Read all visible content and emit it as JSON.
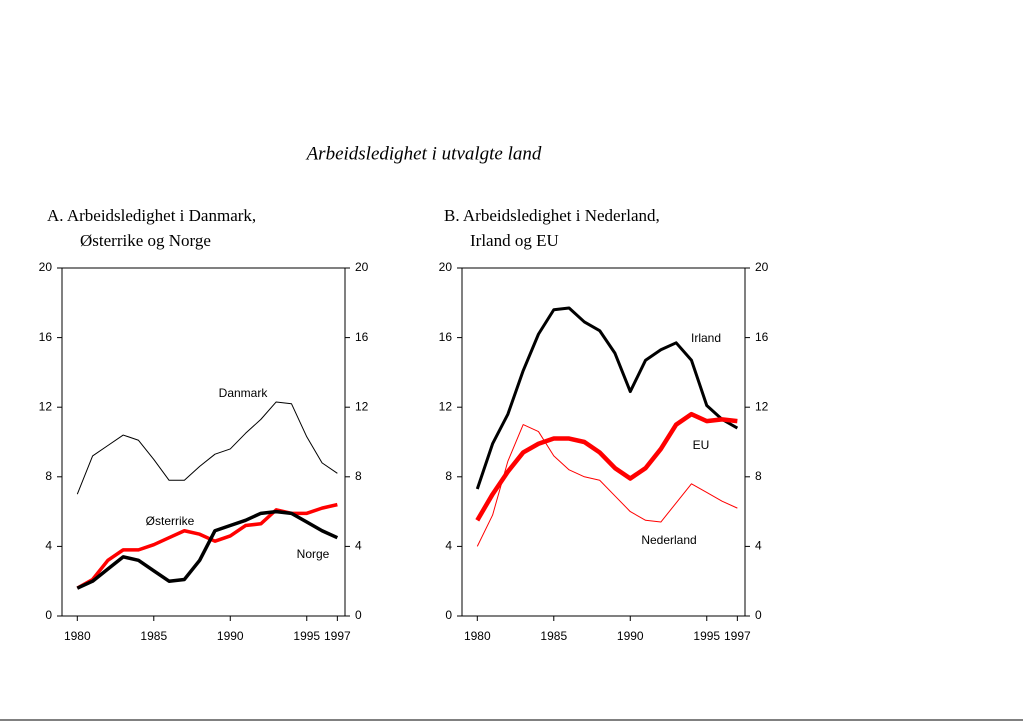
{
  "title": "Arbeidsledighet i utvalgte land",
  "chart_data": [
    {
      "type": "line",
      "title": [
        "A.  Arbeidsledighet i Danmark,",
        "Østerrike og Norge"
      ],
      "x": [
        1980,
        1981,
        1982,
        1983,
        1984,
        1985,
        1986,
        1987,
        1988,
        1989,
        1990,
        1991,
        1992,
        1993,
        1994,
        1995,
        1996,
        1997
      ],
      "xlim": [
        1979,
        1997.5
      ],
      "xticks": [
        1980,
        1985,
        1990,
        1995,
        1997
      ],
      "ylim": [
        0,
        20
      ],
      "yticks": [
        0,
        4,
        8,
        12,
        16,
        20
      ],
      "y2lim": [
        0,
        20
      ],
      "y2ticks": [
        0,
        4,
        8,
        12,
        16,
        20
      ],
      "series": [
        {
          "name": "Danmark",
          "color": "#000000",
          "values": [
            7.0,
            9.2,
            9.8,
            10.4,
            10.1,
            9.0,
            7.8,
            7.8,
            8.6,
            9.3,
            9.6,
            10.5,
            11.3,
            12.3,
            12.2,
            10.3,
            8.8,
            8.2
          ]
        },
        {
          "name": "Østerrike",
          "color": "#ff0000",
          "values": [
            1.6,
            2.1,
            3.2,
            3.8,
            3.8,
            4.1,
            4.5,
            4.9,
            4.7,
            4.3,
            4.6,
            5.2,
            5.3,
            6.1,
            5.9,
            5.9,
            6.2,
            6.4
          ]
        },
        {
          "name": "Norge",
          "color": "#000000",
          "values": [
            1.6,
            2.0,
            2.7,
            3.4,
            3.2,
            2.6,
            2.0,
            2.1,
            3.2,
            4.9,
            5.2,
            5.5,
            5.9,
            6.0,
            5.9,
            5.4,
            4.9,
            4.5
          ]
        }
      ]
    },
    {
      "type": "line",
      "title": [
        "B. Arbeidsledighet i Nederland,",
        "Irland og EU"
      ],
      "x": [
        1980,
        1981,
        1982,
        1983,
        1984,
        1985,
        1986,
        1987,
        1988,
        1989,
        1990,
        1991,
        1992,
        1993,
        1994,
        1995,
        1996,
        1997
      ],
      "xlim": [
        1979,
        1997.5
      ],
      "xticks": [
        1980,
        1985,
        1990,
        1995,
        1997
      ],
      "ylim": [
        0,
        20
      ],
      "yticks": [
        0,
        4,
        8,
        12,
        16,
        20
      ],
      "y2lim": [
        0,
        20
      ],
      "y2ticks": [
        0,
        4,
        8,
        12,
        16,
        20
      ],
      "series": [
        {
          "name": "Irland",
          "color": "#000000",
          "values": [
            7.3,
            9.9,
            11.6,
            14.1,
            16.2,
            17.6,
            17.7,
            16.9,
            16.4,
            15.1,
            12.9,
            14.7,
            15.3,
            15.7,
            14.7,
            12.1,
            11.3,
            10.8
          ]
        },
        {
          "name": "EU",
          "color": "#ff0000",
          "values": [
            5.5,
            7.0,
            8.3,
            9.4,
            9.9,
            10.2,
            10.2,
            10.0,
            9.4,
            8.5,
            7.9,
            8.5,
            9.6,
            11.0,
            11.6,
            11.2,
            11.3,
            11.2
          ]
        },
        {
          "name": "Nederland",
          "color": "#ff0000",
          "values": [
            4.0,
            5.8,
            8.9,
            11.0,
            10.6,
            9.2,
            8.4,
            8.0,
            7.8,
            6.9,
            6.0,
            5.5,
            5.4,
            6.5,
            7.6,
            7.1,
            6.6,
            6.2
          ]
        }
      ]
    }
  ]
}
